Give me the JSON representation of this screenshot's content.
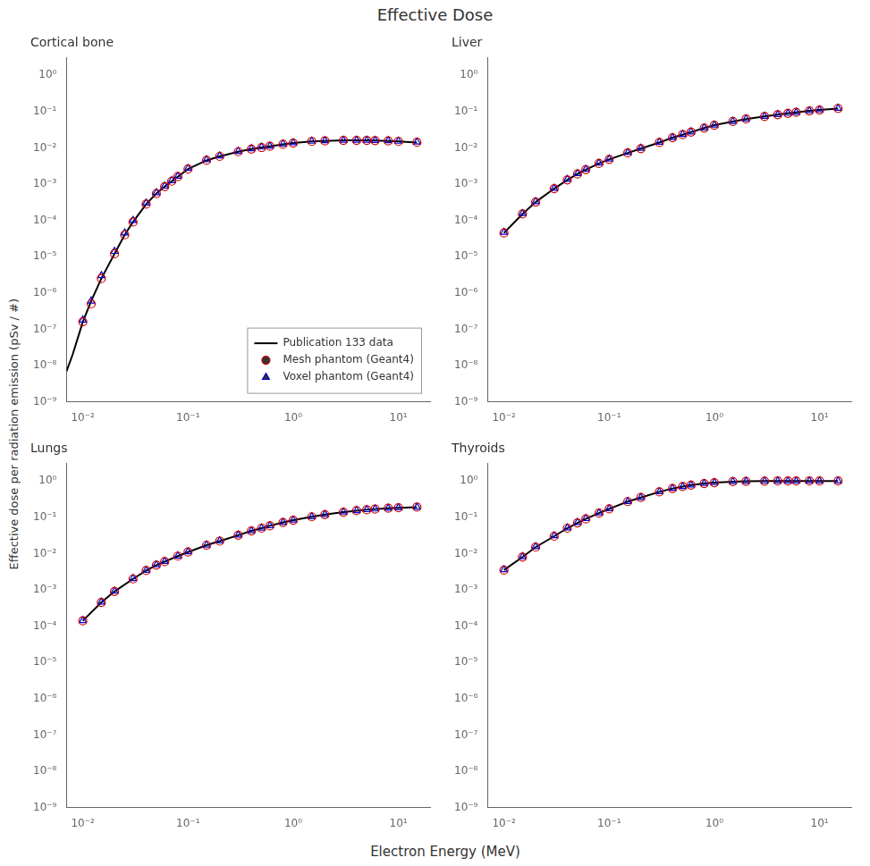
{
  "title": "Effective Dose",
  "xlabel": "Electron Energy (MeV)",
  "ylabel": "Effective dose per radiation emission (pSv / #)",
  "chart_data": [
    {
      "type": "line",
      "title": "Cortical bone",
      "log": true,
      "grid": false,
      "legend": "lower right",
      "xlim": [
        0.007,
        20
      ],
      "ylim": [
        1e-09,
        3
      ],
      "xticks": [
        {
          "value": 0.01,
          "label": "10⁻²"
        },
        {
          "value": 0.1,
          "label": "10⁻¹"
        },
        {
          "value": 1,
          "label": "10⁰"
        },
        {
          "value": 10,
          "label": "10¹"
        }
      ],
      "yticks": [
        {
          "value": 1e-09,
          "label": "10⁻⁹"
        },
        {
          "value": 1e-08,
          "label": "10⁻⁸"
        },
        {
          "value": 1e-07,
          "label": "10⁻⁷"
        },
        {
          "value": 1e-06,
          "label": "10⁻⁶"
        },
        {
          "value": 1e-05,
          "label": "10⁻⁵"
        },
        {
          "value": 0.0001,
          "label": "10⁻⁴"
        },
        {
          "value": 0.001,
          "label": "10⁻³"
        },
        {
          "value": 0.01,
          "label": "10⁻²"
        },
        {
          "value": 0.1,
          "label": "10⁻¹"
        },
        {
          "value": 1,
          "label": "10⁰"
        }
      ],
      "series": [
        {
          "name": "Publication 133 data",
          "type": "line",
          "line_style": "solid",
          "color": "#000000",
          "x": [
            0.007,
            0.008,
            0.009,
            0.01,
            0.012,
            0.015,
            0.02,
            0.025,
            0.03,
            0.04,
            0.05,
            0.06,
            0.07,
            0.08,
            0.1,
            0.15,
            0.2,
            0.3,
            0.4,
            0.5,
            0.6,
            0.8,
            1.0,
            1.5,
            2.0,
            3.0,
            4.0,
            5.0,
            6.0,
            8.0,
            10.0,
            15.0
          ],
          "values": [
            7e-09,
            2e-08,
            6e-08,
            1.6e-07,
            6e-07,
            2.5e-06,
            1.2e-05,
            4e-05,
            9e-05,
            0.00028,
            0.00055,
            0.00085,
            0.0012,
            0.0016,
            0.0026,
            0.0045,
            0.0058,
            0.0078,
            0.0092,
            0.0102,
            0.011,
            0.0125,
            0.0135,
            0.015,
            0.0155,
            0.016,
            0.016,
            0.016,
            0.0158,
            0.0155,
            0.015,
            0.014
          ]
        },
        {
          "name": "Mesh phantom (Geant4)",
          "type": "scatter",
          "marker": "circle",
          "color": "#cc0000",
          "x": [
            0.01,
            0.012,
            0.015,
            0.02,
            0.025,
            0.03,
            0.04,
            0.05,
            0.06,
            0.07,
            0.08,
            0.1,
            0.15,
            0.2,
            0.3,
            0.4,
            0.5,
            0.6,
            0.8,
            1.0,
            1.5,
            2.0,
            3.0,
            4.0,
            5.0,
            6.0,
            8.0,
            10.0,
            15.0
          ],
          "values": [
            1.6e-07,
            5e-07,
            2.5e-06,
            1.2e-05,
            4e-05,
            9e-05,
            0.00028,
            0.00055,
            0.00085,
            0.0012,
            0.0016,
            0.0026,
            0.0045,
            0.0058,
            0.0078,
            0.0092,
            0.0102,
            0.011,
            0.0125,
            0.0135,
            0.015,
            0.0155,
            0.016,
            0.016,
            0.016,
            0.0158,
            0.0155,
            0.015,
            0.0142
          ]
        },
        {
          "name": "Voxel phantom (Geant4)",
          "type": "scatter",
          "marker": "triangle",
          "color": "#0000cc",
          "x": [
            0.01,
            0.012,
            0.015,
            0.02,
            0.025,
            0.03,
            0.04,
            0.05,
            0.06,
            0.07,
            0.08,
            0.1,
            0.15,
            0.2,
            0.3,
            0.4,
            0.5,
            0.6,
            0.8,
            1.0,
            1.5,
            2.0,
            3.0,
            4.0,
            5.0,
            6.0,
            8.0,
            10.0,
            15.0
          ],
          "values": [
            1.8e-07,
            6e-07,
            3e-06,
            1.4e-05,
            4.5e-05,
            0.0001,
            0.0003,
            0.00058,
            0.00088,
            0.00125,
            0.00165,
            0.0027,
            0.0047,
            0.006,
            0.008,
            0.0095,
            0.0105,
            0.0112,
            0.0128,
            0.0138,
            0.0152,
            0.0157,
            0.0162,
            0.0162,
            0.0162,
            0.016,
            0.0157,
            0.0152,
            0.0144
          ]
        }
      ]
    },
    {
      "type": "line",
      "title": "Liver",
      "log": true,
      "grid": false,
      "xlim": [
        0.007,
        20
      ],
      "ylim": [
        1e-09,
        3
      ],
      "xticks": [
        {
          "value": 0.01,
          "label": "10⁻²"
        },
        {
          "value": 0.1,
          "label": "10⁻¹"
        },
        {
          "value": 1,
          "label": "10⁰"
        },
        {
          "value": 10,
          "label": "10¹"
        }
      ],
      "yticks": [
        {
          "value": 1e-09,
          "label": "10⁻⁹"
        },
        {
          "value": 1e-08,
          "label": "10⁻⁸"
        },
        {
          "value": 1e-07,
          "label": "10⁻⁷"
        },
        {
          "value": 1e-06,
          "label": "10⁻⁶"
        },
        {
          "value": 1e-05,
          "label": "10⁻⁵"
        },
        {
          "value": 0.0001,
          "label": "10⁻⁴"
        },
        {
          "value": 0.001,
          "label": "10⁻³"
        },
        {
          "value": 0.01,
          "label": "10⁻²"
        },
        {
          "value": 0.1,
          "label": "10⁻¹"
        },
        {
          "value": 1,
          "label": "10⁰"
        }
      ],
      "series": [
        {
          "name": "Publication 133 data",
          "type": "line",
          "line_style": "solid",
          "color": "#000000",
          "x": [
            0.01,
            0.015,
            0.02,
            0.03,
            0.04,
            0.05,
            0.06,
            0.08,
            0.1,
            0.15,
            0.2,
            0.3,
            0.4,
            0.5,
            0.6,
            0.8,
            1.0,
            1.5,
            2.0,
            3.0,
            4.0,
            5.0,
            6.0,
            8.0,
            10.0,
            15.0
          ],
          "values": [
            4.5e-05,
            0.00015,
            0.00032,
            0.00075,
            0.0013,
            0.0019,
            0.0025,
            0.0037,
            0.0048,
            0.0072,
            0.0095,
            0.014,
            0.019,
            0.023,
            0.027,
            0.035,
            0.042,
            0.053,
            0.062,
            0.073,
            0.082,
            0.089,
            0.095,
            0.104,
            0.11,
            0.12
          ]
        },
        {
          "name": "Mesh phantom (Geant4)",
          "type": "scatter",
          "marker": "circle",
          "color": "#cc0000",
          "x": [
            0.01,
            0.015,
            0.02,
            0.03,
            0.04,
            0.05,
            0.06,
            0.08,
            0.1,
            0.15,
            0.2,
            0.3,
            0.4,
            0.5,
            0.6,
            0.8,
            1.0,
            1.5,
            2.0,
            3.0,
            4.0,
            5.0,
            6.0,
            8.0,
            10.0,
            15.0
          ],
          "values": [
            4.5e-05,
            0.00015,
            0.00032,
            0.00075,
            0.0013,
            0.0019,
            0.0025,
            0.0037,
            0.0048,
            0.0072,
            0.0095,
            0.014,
            0.019,
            0.023,
            0.027,
            0.035,
            0.042,
            0.053,
            0.062,
            0.073,
            0.082,
            0.089,
            0.095,
            0.104,
            0.11,
            0.122
          ]
        },
        {
          "name": "Voxel phantom (Geant4)",
          "type": "scatter",
          "marker": "triangle",
          "color": "#0000cc",
          "x": [
            0.01,
            0.015,
            0.02,
            0.03,
            0.04,
            0.05,
            0.06,
            0.08,
            0.1,
            0.15,
            0.2,
            0.3,
            0.4,
            0.5,
            0.6,
            0.8,
            1.0,
            1.5,
            2.0,
            3.0,
            4.0,
            5.0,
            6.0,
            8.0,
            10.0,
            15.0
          ],
          "values": [
            4.7e-05,
            0.000155,
            0.00033,
            0.00077,
            0.00135,
            0.00195,
            0.00255,
            0.0038,
            0.0049,
            0.0074,
            0.0097,
            0.0142,
            0.0192,
            0.0235,
            0.0275,
            0.0355,
            0.0425,
            0.0535,
            0.0625,
            0.0735,
            0.0825,
            0.0895,
            0.0955,
            0.105,
            0.111,
            0.123
          ]
        }
      ]
    },
    {
      "type": "line",
      "title": "Lungs",
      "log": true,
      "grid": false,
      "xlim": [
        0.007,
        20
      ],
      "ylim": [
        1e-09,
        3
      ],
      "xticks": [
        {
          "value": 0.01,
          "label": "10⁻²"
        },
        {
          "value": 0.1,
          "label": "10⁻¹"
        },
        {
          "value": 1,
          "label": "10⁰"
        },
        {
          "value": 10,
          "label": "10¹"
        }
      ],
      "yticks": [
        {
          "value": 1e-09,
          "label": "10⁻⁹"
        },
        {
          "value": 1e-08,
          "label": "10⁻⁸"
        },
        {
          "value": 1e-07,
          "label": "10⁻⁷"
        },
        {
          "value": 1e-06,
          "label": "10⁻⁶"
        },
        {
          "value": 1e-05,
          "label": "10⁻⁵"
        },
        {
          "value": 0.0001,
          "label": "10⁻⁴"
        },
        {
          "value": 0.001,
          "label": "10⁻³"
        },
        {
          "value": 0.01,
          "label": "10⁻²"
        },
        {
          "value": 0.1,
          "label": "10⁻¹"
        },
        {
          "value": 1,
          "label": "10⁰"
        }
      ],
      "series": [
        {
          "name": "Publication 133 data",
          "type": "line",
          "line_style": "solid",
          "color": "#000000",
          "x": [
            0.01,
            0.015,
            0.02,
            0.03,
            0.04,
            0.05,
            0.06,
            0.08,
            0.1,
            0.15,
            0.2,
            0.3,
            0.4,
            0.5,
            0.6,
            0.8,
            1.0,
            1.5,
            2.0,
            3.0,
            4.0,
            5.0,
            6.0,
            8.0,
            10.0,
            15.0
          ],
          "values": [
            0.00014,
            0.00045,
            0.0009,
            0.002,
            0.0034,
            0.0048,
            0.006,
            0.0085,
            0.011,
            0.017,
            0.022,
            0.032,
            0.042,
            0.05,
            0.058,
            0.072,
            0.083,
            0.103,
            0.118,
            0.138,
            0.152,
            0.161,
            0.168,
            0.177,
            0.182,
            0.189
          ]
        },
        {
          "name": "Mesh phantom (Geant4)",
          "type": "scatter",
          "marker": "circle",
          "color": "#cc0000",
          "x": [
            0.01,
            0.015,
            0.02,
            0.03,
            0.04,
            0.05,
            0.06,
            0.08,
            0.1,
            0.15,
            0.2,
            0.3,
            0.4,
            0.5,
            0.6,
            0.8,
            1.0,
            1.5,
            2.0,
            3.0,
            4.0,
            5.0,
            6.0,
            8.0,
            10.0,
            15.0
          ],
          "values": [
            0.00014,
            0.00045,
            0.0009,
            0.002,
            0.0034,
            0.0048,
            0.006,
            0.0085,
            0.011,
            0.017,
            0.022,
            0.032,
            0.042,
            0.05,
            0.058,
            0.072,
            0.083,
            0.103,
            0.118,
            0.138,
            0.152,
            0.161,
            0.168,
            0.177,
            0.182,
            0.19
          ]
        },
        {
          "name": "Voxel phantom (Geant4)",
          "type": "scatter",
          "marker": "triangle",
          "color": "#0000cc",
          "x": [
            0.01,
            0.015,
            0.02,
            0.03,
            0.04,
            0.05,
            0.06,
            0.08,
            0.1,
            0.15,
            0.2,
            0.3,
            0.4,
            0.5,
            0.6,
            0.8,
            1.0,
            1.5,
            2.0,
            3.0,
            4.0,
            5.0,
            6.0,
            8.0,
            10.0,
            15.0
          ],
          "values": [
            0.000142,
            0.00046,
            0.00092,
            0.00205,
            0.00345,
            0.0049,
            0.0061,
            0.0086,
            0.0112,
            0.0172,
            0.0225,
            0.0325,
            0.0425,
            0.0505,
            0.0585,
            0.0725,
            0.0835,
            0.104,
            0.119,
            0.139,
            0.153,
            0.162,
            0.169,
            0.178,
            0.183,
            0.191
          ]
        }
      ]
    },
    {
      "type": "line",
      "title": "Thyroids",
      "log": true,
      "grid": false,
      "xlim": [
        0.007,
        20
      ],
      "ylim": [
        1e-09,
        3
      ],
      "xticks": [
        {
          "value": 0.01,
          "label": "10⁻²"
        },
        {
          "value": 0.1,
          "label": "10⁻¹"
        },
        {
          "value": 1,
          "label": "10⁰"
        },
        {
          "value": 10,
          "label": "10¹"
        }
      ],
      "yticks": [
        {
          "value": 1e-09,
          "label": "10⁻⁹"
        },
        {
          "value": 1e-08,
          "label": "10⁻⁸"
        },
        {
          "value": 1e-07,
          "label": "10⁻⁷"
        },
        {
          "value": 1e-06,
          "label": "10⁻⁶"
        },
        {
          "value": 1e-05,
          "label": "10⁻⁵"
        },
        {
          "value": 0.0001,
          "label": "10⁻⁴"
        },
        {
          "value": 0.001,
          "label": "10⁻³"
        },
        {
          "value": 0.01,
          "label": "10⁻²"
        },
        {
          "value": 0.1,
          "label": "10⁻¹"
        },
        {
          "value": 1,
          "label": "10⁰"
        }
      ],
      "series": [
        {
          "name": "Publication 133 data",
          "type": "line",
          "line_style": "solid",
          "color": "#000000",
          "x": [
            0.01,
            0.015,
            0.02,
            0.03,
            0.04,
            0.05,
            0.06,
            0.08,
            0.1,
            0.15,
            0.2,
            0.3,
            0.4,
            0.5,
            0.6,
            0.8,
            1.0,
            1.5,
            2.0,
            3.0,
            4.0,
            5.0,
            6.0,
            8.0,
            10.0,
            15.0
          ],
          "values": [
            0.0035,
            0.008,
            0.015,
            0.03,
            0.05,
            0.07,
            0.09,
            0.13,
            0.17,
            0.27,
            0.35,
            0.5,
            0.62,
            0.7,
            0.77,
            0.85,
            0.9,
            0.96,
            0.98,
            0.99,
            1.0,
            1.0,
            1.0,
            1.0,
            1.0,
            1.0
          ]
        },
        {
          "name": "Mesh phantom (Geant4)",
          "type": "scatter",
          "marker": "circle",
          "color": "#cc0000",
          "x": [
            0.01,
            0.015,
            0.02,
            0.03,
            0.04,
            0.05,
            0.06,
            0.08,
            0.1,
            0.15,
            0.2,
            0.3,
            0.4,
            0.5,
            0.6,
            0.8,
            1.0,
            1.5,
            2.0,
            3.0,
            4.0,
            5.0,
            6.0,
            8.0,
            10.0,
            15.0
          ],
          "values": [
            0.0035,
            0.008,
            0.015,
            0.03,
            0.05,
            0.07,
            0.09,
            0.13,
            0.17,
            0.27,
            0.35,
            0.5,
            0.62,
            0.7,
            0.77,
            0.85,
            0.9,
            0.96,
            0.98,
            0.99,
            1.0,
            1.0,
            1.0,
            1.0,
            1.0,
            1.0
          ]
        },
        {
          "name": "Voxel phantom (Geant4)",
          "type": "scatter",
          "marker": "triangle",
          "color": "#0000cc",
          "x": [
            0.01,
            0.015,
            0.02,
            0.03,
            0.04,
            0.05,
            0.06,
            0.08,
            0.1,
            0.15,
            0.2,
            0.3,
            0.4,
            0.5,
            0.6,
            0.8,
            1.0,
            1.5,
            2.0,
            3.0,
            4.0,
            5.0,
            6.0,
            8.0,
            10.0,
            15.0
          ],
          "values": [
            0.0036,
            0.0082,
            0.0155,
            0.031,
            0.051,
            0.072,
            0.092,
            0.132,
            0.172,
            0.272,
            0.352,
            0.505,
            0.625,
            0.705,
            0.775,
            0.855,
            0.905,
            0.965,
            0.985,
            0.995,
            1.0,
            1.0,
            1.0,
            1.0,
            1.0,
            1.0
          ]
        }
      ]
    }
  ]
}
